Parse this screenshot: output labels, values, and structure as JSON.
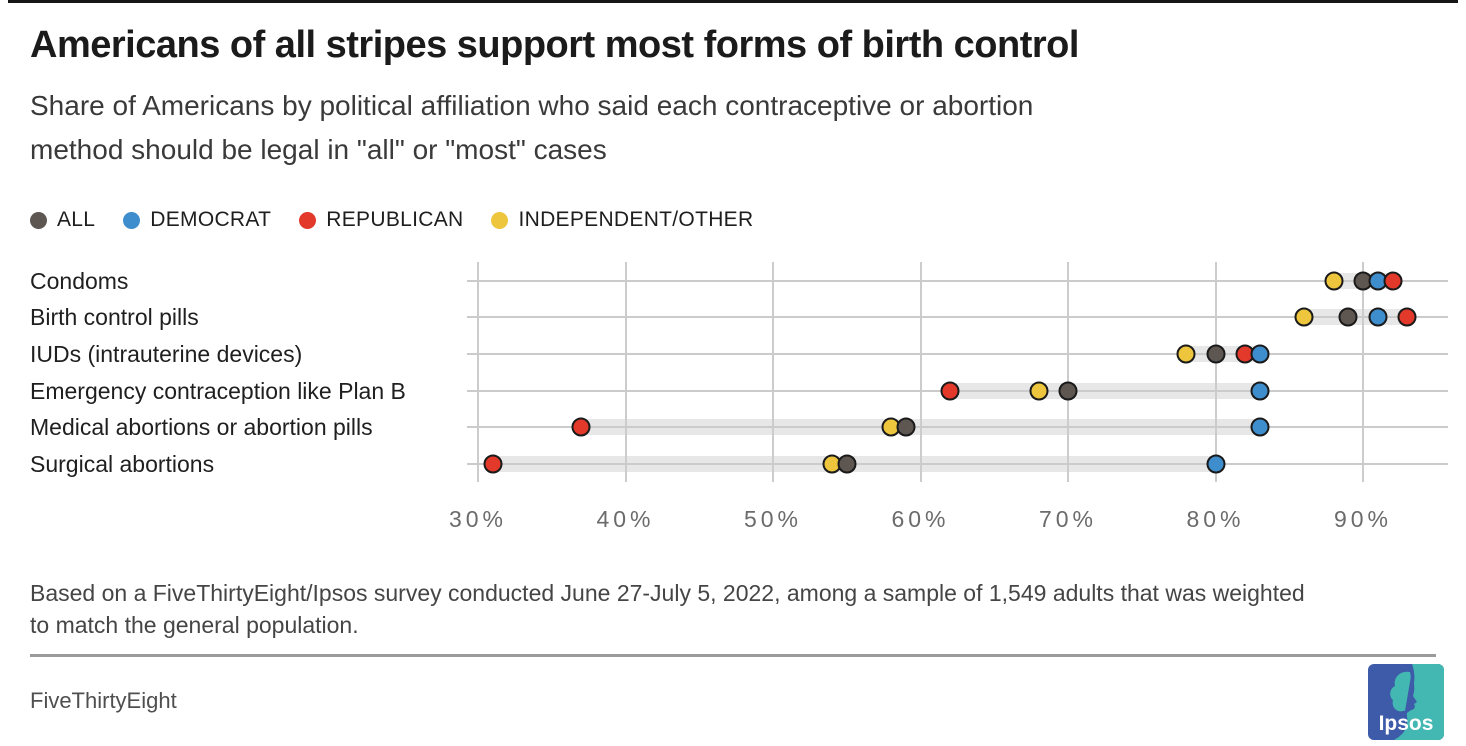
{
  "chart_data": {
    "type": "scatter",
    "subtype": "horizontal-dot-plot",
    "title": "Americans of all stripes support most forms of birth control",
    "subtitle_line1": "Share of Americans by political affiliation who said each contraceptive or abortion",
    "subtitle_line2": "method should be legal in \"all\" or \"most\" cases",
    "categories": [
      "Condoms",
      "Birth control pills",
      "IUDs (intrauterine devices)",
      "Emergency contraception like Plan B",
      "Medical abortions or abortion pills",
      "Surgical abortions"
    ],
    "series": [
      {
        "key": "all",
        "name": "ALL",
        "color": "#5e5651",
        "values": [
          90,
          89,
          80,
          70,
          59,
          55
        ]
      },
      {
        "key": "democrat",
        "name": "DEMOCRAT",
        "color": "#3e8ecd",
        "values": [
          91,
          91,
          83,
          83,
          83,
          80
        ]
      },
      {
        "key": "republican",
        "name": "REPUBLICAN",
        "color": "#e2392b",
        "values": [
          92,
          93,
          82,
          62,
          37,
          31
        ]
      },
      {
        "key": "independent",
        "name": "INDEPENDENT/OTHER",
        "color": "#edc63e",
        "values": [
          88,
          86,
          78,
          68,
          58,
          54
        ]
      }
    ],
    "x_axis": {
      "unit": "%",
      "range": [
        29,
        96
      ],
      "grid": true,
      "ticks": [
        {
          "value": 30,
          "label": "30%"
        },
        {
          "value": 40,
          "label": "40%"
        },
        {
          "value": 50,
          "label": "50%"
        },
        {
          "value": 60,
          "label": "60%"
        },
        {
          "value": 70,
          "label": "70%"
        },
        {
          "value": 80,
          "label": "80%"
        },
        {
          "value": 90,
          "label": "90%"
        }
      ]
    },
    "legend_position": "top",
    "range_band_color": "#e7e7e7",
    "gridline_color": "#cccccc",
    "dot_outline_color": "#1a1a1a"
  },
  "footer": {
    "note_line1": "Based on a FiveThirtyEight/Ipsos survey conducted June 27-July 5, 2022, among a sample of 1,549 adults that was weighted",
    "note_line2": "to match the general population.",
    "brand": "FiveThirtyEight",
    "logo_text": "Ipsos",
    "logo_blue": "#3d5ba8",
    "logo_teal": "#43b8b2"
  }
}
